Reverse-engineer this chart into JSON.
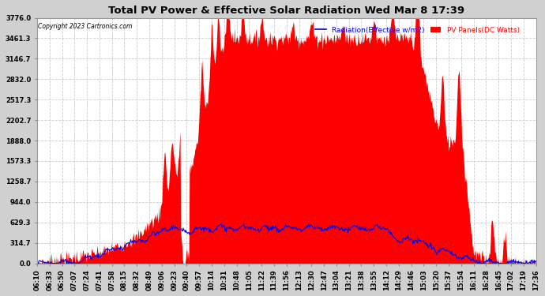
{
  "title": "Total PV Power & Effective Solar Radiation Wed Mar 8 17:39",
  "copyright": "Copyright 2023 Cartronics.com",
  "legend_radiation": "Radiation(Effective w/m2)",
  "legend_pv": "PV Panels(DC Watts)",
  "yticks": [
    0.0,
    314.7,
    629.3,
    944.0,
    1258.7,
    1573.3,
    1888.0,
    2202.7,
    2517.3,
    2832.0,
    3146.7,
    3461.3,
    3776.0
  ],
  "ymax": 3776.0,
  "ymin": 0.0,
  "fig_bg_color": "#d0d0d0",
  "plot_bg_color": "#ffffff",
  "grid_color": "#aaaaaa",
  "radiation_color": "#0000ee",
  "pv_fill_color": "#ff0000",
  "xtick_labels": [
    "06:10",
    "06:33",
    "06:50",
    "07:07",
    "07:24",
    "07:41",
    "07:58",
    "08:15",
    "08:32",
    "08:49",
    "09:06",
    "09:23",
    "09:40",
    "09:57",
    "10:14",
    "10:31",
    "10:48",
    "11:05",
    "11:22",
    "11:39",
    "11:56",
    "12:13",
    "12:30",
    "12:47",
    "13:04",
    "13:21",
    "13:38",
    "13:55",
    "14:12",
    "14:29",
    "14:46",
    "15:03",
    "15:20",
    "15:37",
    "15:54",
    "16:11",
    "16:28",
    "16:45",
    "17:02",
    "17:19",
    "17:36"
  ]
}
